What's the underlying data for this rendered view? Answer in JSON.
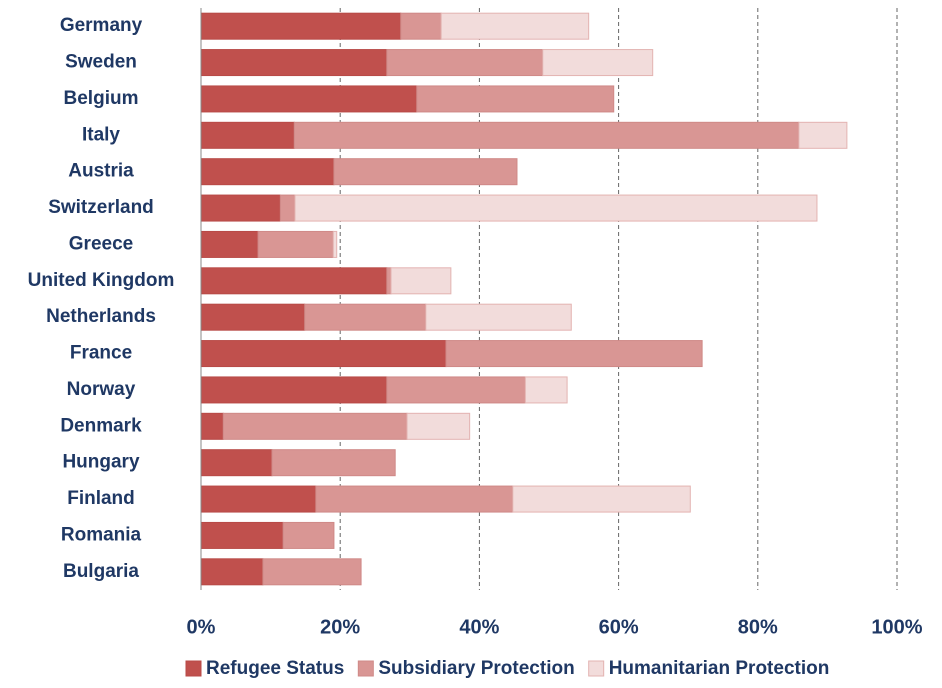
{
  "chart_data": {
    "type": "stacked_barh",
    "categories": [
      "Germany",
      "Sweden",
      "Belgium",
      "Italy",
      "Austria",
      "Switzerland",
      "Greece",
      "United Kingdom",
      "Netherlands",
      "France",
      "Norway",
      "Denmark",
      "Hungary",
      "Finland",
      "Romania",
      "Bulgaria"
    ],
    "series": [
      {
        "name": "Refugee Status",
        "color": "#c0504d",
        "values": [
          28.7,
          26.7,
          31.0,
          13.4,
          19.1,
          11.4,
          8.2,
          26.7,
          14.9,
          35.2,
          26.7,
          3.2,
          10.2,
          16.5,
          11.8,
          8.9
        ]
      },
      {
        "name": "Subsidiary Protection",
        "color": "#d99694",
        "values": [
          5.8,
          22.4,
          28.3,
          72.5,
          26.3,
          2.1,
          10.8,
          0.6,
          17.4,
          36.8,
          19.9,
          26.4,
          17.7,
          28.3,
          7.3,
          14.1
        ]
      },
      {
        "name": "Humanitarian Protection",
        "color": "#f2dcdb",
        "values": [
          21.2,
          15.8,
          0,
          6.9,
          0,
          75.0,
          0.5,
          8.6,
          20.9,
          0,
          6.0,
          9.0,
          0,
          25.5,
          0,
          0
        ]
      }
    ],
    "xlim": [
      0,
      100
    ],
    "xticks": [
      {
        "value": 0,
        "label": "0%"
      },
      {
        "value": 20,
        "label": "20%"
      },
      {
        "value": 40,
        "label": "40%"
      },
      {
        "value": 60,
        "label": "60%"
      },
      {
        "value": 80,
        "label": "80%"
      },
      {
        "value": 100,
        "label": "100%"
      }
    ],
    "grid": true,
    "legend": "bottom"
  }
}
